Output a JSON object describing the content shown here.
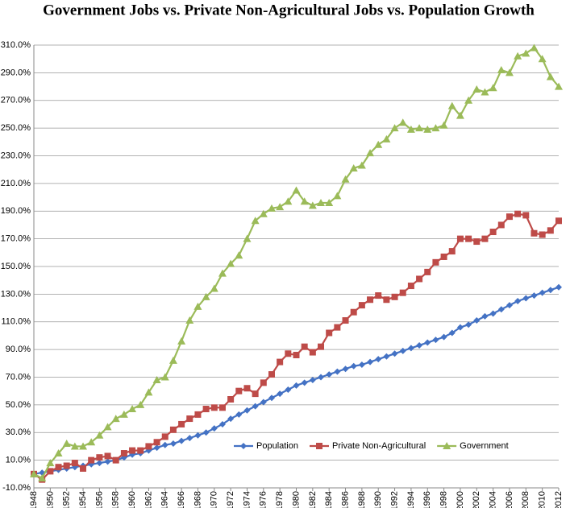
{
  "chart_data": {
    "type": "line",
    "title": "Government Jobs vs. Private Non-Agricultural  Jobs vs. Population Growth",
    "x": [
      1948,
      1949,
      1950,
      1951,
      1952,
      1953,
      1954,
      1955,
      1956,
      1957,
      1958,
      1959,
      1960,
      1961,
      1962,
      1963,
      1964,
      1965,
      1966,
      1967,
      1968,
      1969,
      1970,
      1971,
      1972,
      1973,
      1974,
      1975,
      1976,
      1977,
      1978,
      1979,
      1980,
      1981,
      1982,
      1983,
      1984,
      1985,
      1986,
      1987,
      1988,
      1989,
      1990,
      1991,
      1992,
      1993,
      1994,
      1995,
      1996,
      1997,
      1998,
      1999,
      2000,
      2001,
      2002,
      2003,
      2004,
      2005,
      2006,
      2007,
      2008,
      2009,
      2010,
      2011,
      2012
    ],
    "series": [
      {
        "name": "Population",
        "color": "#4472c4",
        "marker": "diamond",
        "values": [
          0,
          1,
          2,
          3,
          4,
          5,
          6,
          7,
          8,
          9,
          10,
          12,
          14,
          15,
          17,
          19,
          21,
          22,
          24,
          26,
          28,
          30,
          33,
          36,
          40,
          43,
          46,
          49,
          52,
          55,
          58,
          61,
          64,
          66,
          68,
          70,
          72,
          74,
          76,
          78,
          79,
          81,
          83,
          85,
          87,
          89,
          91,
          93,
          95,
          97,
          99,
          102,
          106,
          108,
          111,
          114,
          116,
          119,
          122,
          125,
          127,
          129,
          131,
          133,
          135
        ]
      },
      {
        "name": "Private Non-Agricultural",
        "color": "#be4b48",
        "marker": "square",
        "values": [
          0,
          -4,
          2,
          5,
          6,
          8,
          4,
          10,
          12,
          13,
          10,
          15,
          17,
          17,
          20,
          23,
          27,
          32,
          36,
          40,
          43,
          47,
          48,
          48,
          54,
          60,
          62,
          58,
          66,
          72,
          81,
          87,
          86,
          92,
          88,
          92,
          102,
          106,
          111,
          117,
          122,
          126,
          129,
          126,
          128,
          131,
          136,
          141,
          146,
          153,
          157,
          161,
          170,
          170,
          168,
          170,
          175,
          180,
          186,
          188,
          187,
          174,
          173,
          176,
          183
        ]
      },
      {
        "name": "Government",
        "color": "#9bbb59",
        "marker": "triangle",
        "values": [
          0,
          -3,
          8,
          15,
          22,
          20,
          20,
          23,
          28,
          34,
          40,
          43,
          47,
          50,
          59,
          68,
          70,
          82,
          96,
          111,
          121,
          128,
          134,
          145,
          152,
          158,
          170,
          183,
          188,
          192,
          193,
          197,
          205,
          197,
          194,
          196,
          196,
          201,
          213,
          221,
          223,
          232,
          238,
          242,
          250,
          254,
          249,
          250,
          249,
          250,
          252,
          266,
          259,
          270,
          278,
          276,
          279,
          292,
          290,
          302,
          304,
          308,
          300,
          287,
          280
        ]
      }
    ],
    "xlim": [
      1948,
      2012
    ],
    "xticks": [
      1948,
      1950,
      1952,
      1954,
      1956,
      1958,
      1960,
      1962,
      1964,
      1966,
      1968,
      1970,
      1972,
      1974,
      1976,
      1978,
      1980,
      1982,
      1984,
      1986,
      1988,
      1990,
      1992,
      1994,
      1996,
      1998,
      2000,
      2002,
      2004,
      2006,
      2008,
      2010,
      2012
    ],
    "ylim": [
      -10,
      310
    ],
    "yticks": [
      {
        "value": -10,
        "label": "-10.0%"
      },
      {
        "value": 10,
        "label": "10.0%"
      },
      {
        "value": 30,
        "label": "30.0%"
      },
      {
        "value": 50,
        "label": "50.0%"
      },
      {
        "value": 70,
        "label": "70.0%"
      },
      {
        "value": 90,
        "label": "90.0%"
      },
      {
        "value": 110,
        "label": "110.0%"
      },
      {
        "value": 130,
        "label": "130.0%"
      },
      {
        "value": 150,
        "label": "150.0%"
      },
      {
        "value": 170,
        "label": "170.0%"
      },
      {
        "value": 190,
        "label": "190.0%"
      },
      {
        "value": 210,
        "label": "210.0%"
      },
      {
        "value": 230,
        "label": "230.0%"
      },
      {
        "value": 250,
        "label": "250.0%"
      },
      {
        "value": 270,
        "label": "270.0%"
      },
      {
        "value": 290,
        "label": "290.0%"
      },
      {
        "value": 310,
        "label": "310.0%"
      }
    ],
    "grid": true,
    "legend": "bottom"
  }
}
